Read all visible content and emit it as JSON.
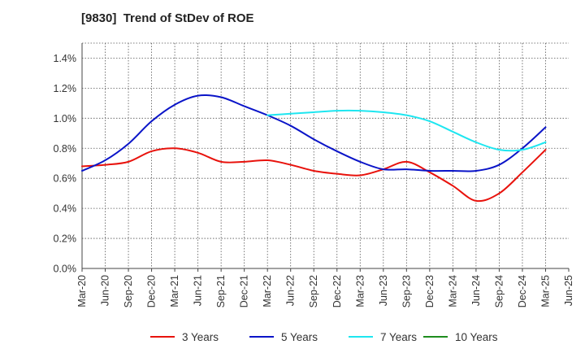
{
  "chart_data": {
    "type": "line",
    "title": "[9830]  Trend of StDev of ROE",
    "xlabel": "",
    "ylabel": "",
    "x": [
      "Mar-20",
      "Jun-20",
      "Sep-20",
      "Dec-20",
      "Mar-21",
      "Jun-21",
      "Sep-21",
      "Dec-21",
      "Mar-22",
      "Jun-22",
      "Sep-22",
      "Dec-22",
      "Mar-23",
      "Jun-23",
      "Sep-23",
      "Dec-23",
      "Mar-24",
      "Jun-24",
      "Sep-24",
      "Dec-24",
      "Mar-25",
      "Jun-25"
    ],
    "y_ticks": [
      "0.0%",
      "0.2%",
      "0.4%",
      "0.6%",
      "0.8%",
      "1.0%",
      "1.2%",
      "1.4%"
    ],
    "ylim": [
      0,
      1.5
    ],
    "grid": true,
    "legend_position": "bottom",
    "series": [
      {
        "name": "3 Years",
        "color": "#e8120c",
        "values": [
          0.68,
          0.69,
          0.71,
          0.78,
          0.8,
          0.77,
          0.71,
          0.71,
          0.72,
          0.69,
          0.65,
          0.63,
          0.62,
          0.66,
          0.71,
          0.64,
          0.55,
          0.45,
          0.5,
          0.64,
          0.79,
          null
        ]
      },
      {
        "name": "5 Years",
        "color": "#0a14c8",
        "values": [
          0.65,
          0.72,
          0.83,
          0.98,
          1.09,
          1.15,
          1.14,
          1.08,
          1.02,
          0.95,
          0.86,
          0.78,
          0.71,
          0.66,
          0.66,
          0.65,
          0.65,
          0.65,
          0.69,
          0.8,
          0.94,
          null
        ]
      },
      {
        "name": "7 Years",
        "color": "#1ee6f0",
        "values": [
          null,
          null,
          null,
          null,
          null,
          null,
          null,
          null,
          1.02,
          1.03,
          1.04,
          1.05,
          1.05,
          1.04,
          1.02,
          0.98,
          0.91,
          0.84,
          0.79,
          0.79,
          0.84,
          null
        ]
      },
      {
        "name": "10 Years",
        "color": "#1e8c1e",
        "values": [
          null,
          null,
          null,
          null,
          null,
          null,
          null,
          null,
          null,
          null,
          null,
          null,
          null,
          null,
          null,
          null,
          null,
          null,
          null,
          null,
          null,
          null
        ]
      }
    ]
  }
}
